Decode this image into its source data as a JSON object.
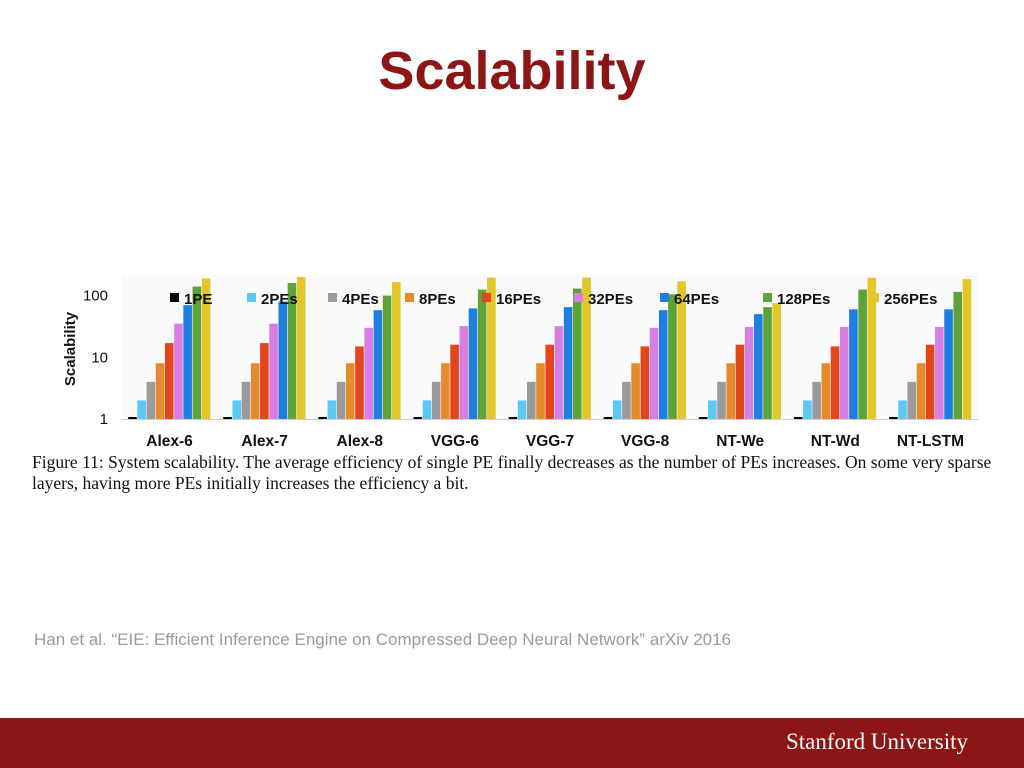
{
  "slide": {
    "title": "Scalability",
    "caption": "Figure 11: System scalability. The average efficiency of single PE finally decreases as the number of PEs increases. On some very sparse layers, having more PEs initially increases the efficiency a bit.",
    "citation": "Han et al. “EIE: Efficient Inference Engine on Compressed Deep Neural Network” arXiv 2016",
    "footer": "Stanford University"
  },
  "colors": {
    "brand": "#8c1515",
    "series": [
      "#000000",
      "#5bc8f5",
      "#9b9b9b",
      "#e58a2d",
      "#e2461d",
      "#d77ee3",
      "#1f7fe0",
      "#5ea33a",
      "#e3c62a"
    ]
  },
  "chart_data": {
    "type": "bar",
    "xlabel": "",
    "ylabel": "Scalability",
    "yscale": "log",
    "ylim": [
      1,
      200
    ],
    "yticks": [
      "1",
      "10",
      "100"
    ],
    "legend_position": "top",
    "grid": false,
    "categories": [
      "Alex-6",
      "Alex-7",
      "Alex-8",
      "VGG-6",
      "VGG-7",
      "VGG-8",
      "NT-We",
      "NT-Wd",
      "NT-LSTM"
    ],
    "series": [
      {
        "name": "1PE",
        "values": [
          1,
          1,
          1,
          1,
          1,
          1,
          1,
          1,
          1
        ]
      },
      {
        "name": "2PEs",
        "values": [
          2,
          2,
          2,
          2,
          2,
          2,
          2,
          2,
          2
        ]
      },
      {
        "name": "4PEs",
        "values": [
          4,
          4,
          4,
          4,
          4,
          4,
          4,
          4,
          4
        ]
      },
      {
        "name": "8PEs",
        "values": [
          8,
          8,
          8,
          8,
          8,
          8,
          8,
          8,
          8
        ]
      },
      {
        "name": "16PEs",
        "values": [
          17,
          17,
          15,
          16,
          16,
          15,
          16,
          15,
          16
        ]
      },
      {
        "name": "32PEs",
        "values": [
          35,
          35,
          30,
          32,
          32,
          30,
          31,
          31,
          31
        ]
      },
      {
        "name": "64PEs",
        "values": [
          70,
          80,
          58,
          62,
          65,
          58,
          50,
          60,
          60
        ]
      },
      {
        "name": "128PEs",
        "values": [
          140,
          160,
          100,
          125,
          130,
          105,
          65,
          125,
          115
        ]
      },
      {
        "name": "256PEs",
        "values": [
          190,
          200,
          165,
          195,
          195,
          170,
          75,
          195,
          185
        ]
      }
    ]
  }
}
